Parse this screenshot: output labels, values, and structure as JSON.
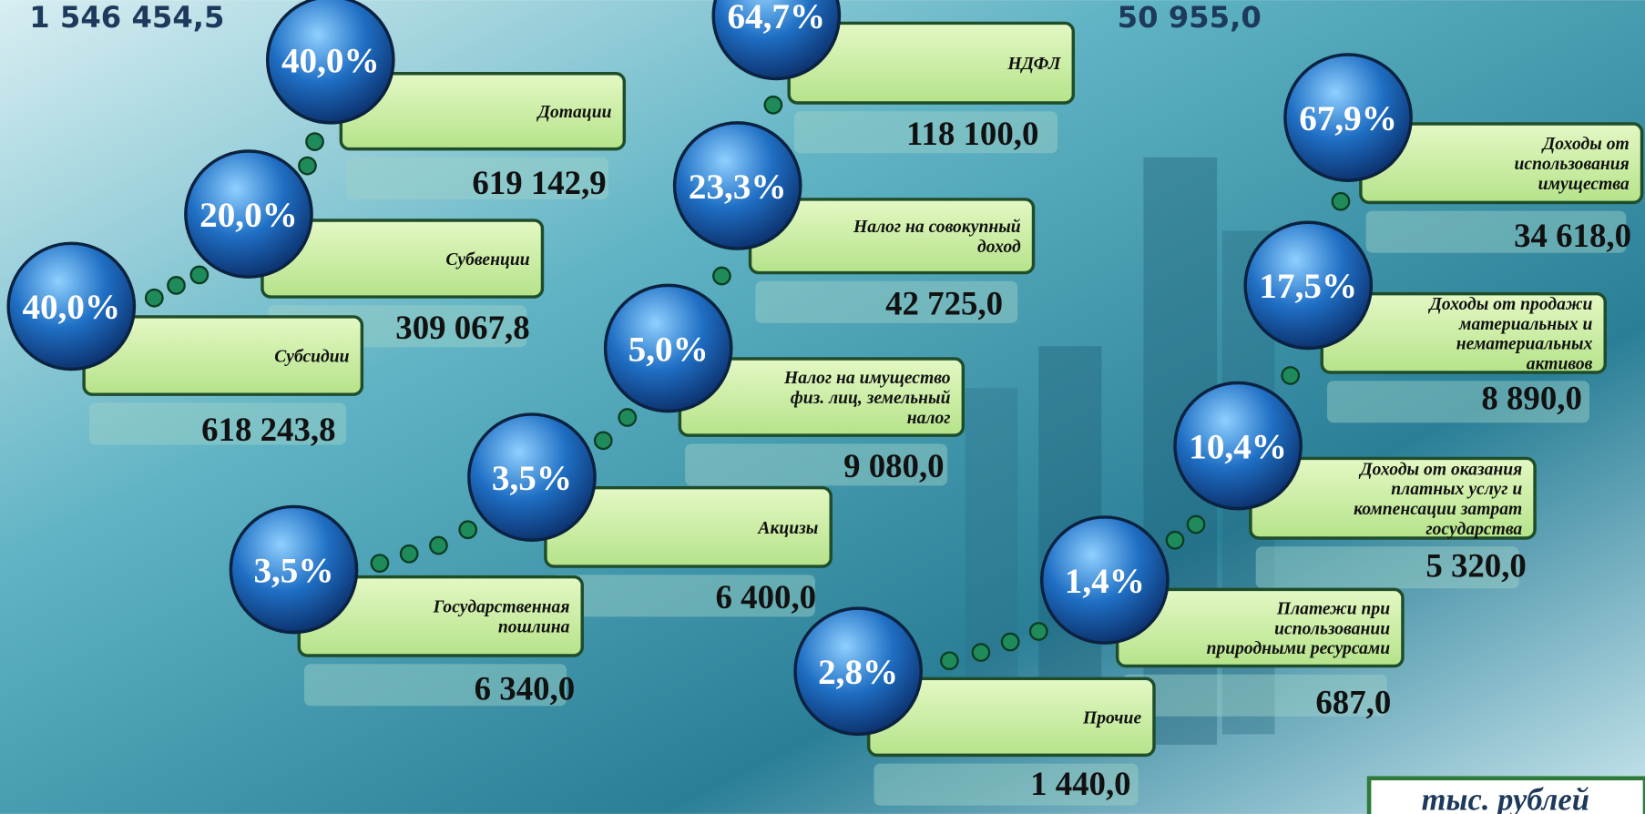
{
  "header": {
    "left_value": "1 546 454,5",
    "right_value": "50 955,0"
  },
  "items": [
    {
      "percent": "40,0%",
      "label": [
        "Дотации"
      ],
      "value": "619 142,9"
    },
    {
      "percent": "20,0%",
      "label": [
        "Субвенции"
      ],
      "value": "309 067,8"
    },
    {
      "percent": "40,0%",
      "label": [
        "Субсидии"
      ],
      "value": "618 243,8"
    },
    {
      "percent": "64,7%",
      "label": [
        "НДФЛ"
      ],
      "value": "118 100,0"
    },
    {
      "percent": "23,3%",
      "label": [
        "Налог на совокупный",
        "доход"
      ],
      "value": "42 725,0"
    },
    {
      "percent": "5,0%",
      "label": [
        "Налог на имущество",
        "физ. лиц, земельный",
        "налог"
      ],
      "value": "9 080,0"
    },
    {
      "percent": "3,5%",
      "label": [
        "Акцизы"
      ],
      "value": "6 400,0"
    },
    {
      "percent": "3,5%",
      "label": [
        "Государственная",
        "пошлина"
      ],
      "value": "6 340,0"
    },
    {
      "percent": "67,9%",
      "label": [
        "Доходы от",
        "использования",
        "имущества"
      ],
      "value": "34 618,0"
    },
    {
      "percent": "17,5%",
      "label": [
        "Доходы от продажи",
        "материальных и",
        "нематериальных",
        "активов"
      ],
      "value": "8 890,0"
    },
    {
      "percent": "10,4%",
      "label": [
        "Доходы от оказания",
        "платных услуг и",
        "компенсации затрат",
        "государства"
      ],
      "value": "5 320,0"
    },
    {
      "percent": "1,4%",
      "label": [
        "Платежи при",
        "использовании",
        "природными ресурсами"
      ],
      "value": "687,0"
    },
    {
      "percent": "2,8%",
      "label": [
        "Прочие"
      ],
      "value": "1 440,0"
    }
  ],
  "unit": "тыс. рублей"
}
